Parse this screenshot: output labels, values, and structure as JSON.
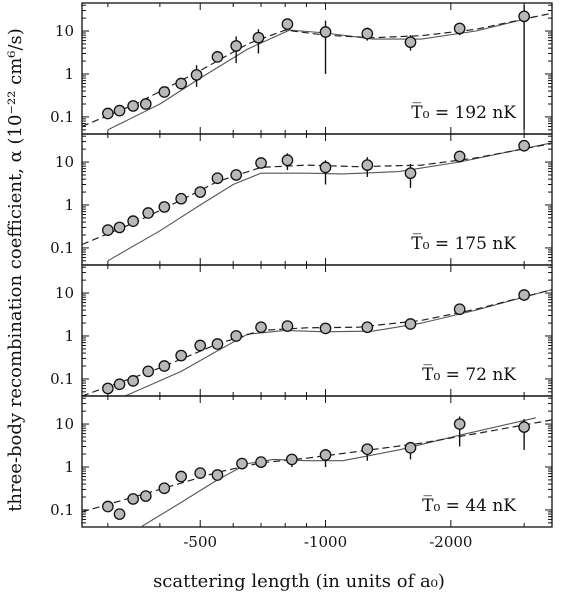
{
  "chart_data": {
    "type": "scatter",
    "ylabel": "three-body recombination coefficient, α (10⁻²² cm⁶/s)",
    "xlabel": "scattering length (in units of a₀)",
    "x_tick_labels": [
      "-500",
      "-1000",
      "-2000"
    ],
    "y_tick_labels": [
      "0.1",
      "1",
      "10"
    ],
    "x_scale": "log (|a|)",
    "y_scale": "log",
    "xlim": [
      -260,
      -3500
    ],
    "ylim": [
      0.04,
      45
    ],
    "panels": [
      {
        "label_prefix": "T̅₀ = ",
        "label_value": "192 nK",
        "points": [
          {
            "x": -300,
            "y": 0.12,
            "lo": 0.12,
            "hi": 0.12
          },
          {
            "x": -320,
            "y": 0.14,
            "lo": 0.14,
            "hi": 0.14
          },
          {
            "x": -345,
            "y": 0.18,
            "lo": 0.18,
            "hi": 0.18
          },
          {
            "x": -370,
            "y": 0.2,
            "lo": 0.2,
            "hi": 0.2
          },
          {
            "x": -410,
            "y": 0.38,
            "lo": 0.38,
            "hi": 0.38
          },
          {
            "x": -450,
            "y": 0.6,
            "lo": 0.6,
            "hi": 0.6
          },
          {
            "x": -490,
            "y": 0.95,
            "lo": 0.5,
            "hi": 1.6
          },
          {
            "x": -550,
            "y": 2.5,
            "lo": 2.5,
            "hi": 2.5
          },
          {
            "x": -610,
            "y": 4.5,
            "lo": 1.8,
            "hi": 7.5
          },
          {
            "x": -690,
            "y": 7.0,
            "lo": 3.0,
            "hi": 11.0
          },
          {
            "x": -810,
            "y": 14.5,
            "lo": 14.5,
            "hi": 14.5
          },
          {
            "x": -1000,
            "y": 9.5,
            "lo": 1.0,
            "hi": 17.5
          },
          {
            "x": -1260,
            "y": 8.7,
            "lo": 6.0,
            "hi": 12.0
          },
          {
            "x": -1600,
            "y": 5.5,
            "lo": 3.5,
            "hi": 8.0
          },
          {
            "x": -2100,
            "y": 11.5,
            "lo": 8.0,
            "hi": 15.0
          },
          {
            "x": -3000,
            "y": 22.0,
            "lo": 0.05,
            "hi": 40.0
          }
        ],
        "dashed_fit": [
          [
            -260,
            0.06
          ],
          [
            -350,
            0.2
          ],
          [
            -500,
            1.2
          ],
          [
            -650,
            5.0
          ],
          [
            -800,
            10.5
          ],
          [
            -1000,
            8.0
          ],
          [
            -1300,
            7.0
          ],
          [
            -1700,
            7.8
          ],
          [
            -2300,
            11.0
          ],
          [
            -3500,
            26.0
          ]
        ],
        "solid_fit": [
          [
            -300,
            0.05
          ],
          [
            -400,
            0.2
          ],
          [
            -500,
            0.8
          ],
          [
            -650,
            3.8
          ],
          [
            -820,
            10.5
          ],
          [
            -1000,
            9.0
          ],
          [
            -1300,
            6.5
          ],
          [
            -1700,
            6.5
          ],
          [
            -2300,
            10.0
          ],
          [
            -3200,
            22.0
          ]
        ]
      },
      {
        "label_prefix": "T̅₀ = ",
        "label_value": "175 nK",
        "points": [
          {
            "x": -300,
            "y": 0.26,
            "lo": 0.26,
            "hi": 0.26
          },
          {
            "x": -320,
            "y": 0.3,
            "lo": 0.3,
            "hi": 0.3
          },
          {
            "x": -345,
            "y": 0.42,
            "lo": 0.42,
            "hi": 0.42
          },
          {
            "x": -375,
            "y": 0.65,
            "lo": 0.65,
            "hi": 0.65
          },
          {
            "x": -410,
            "y": 0.9,
            "lo": 0.9,
            "hi": 0.9
          },
          {
            "x": -450,
            "y": 1.4,
            "lo": 1.4,
            "hi": 1.4
          },
          {
            "x": -500,
            "y": 2.0,
            "lo": 2.0,
            "hi": 2.0
          },
          {
            "x": -550,
            "y": 4.2,
            "lo": 4.2,
            "hi": 4.2
          },
          {
            "x": -610,
            "y": 5.0,
            "lo": 5.0,
            "hi": 5.0
          },
          {
            "x": -700,
            "y": 9.5,
            "lo": 9.5,
            "hi": 9.5
          },
          {
            "x": -810,
            "y": 11.0,
            "lo": 6.5,
            "hi": 16.0
          },
          {
            "x": -1000,
            "y": 7.5,
            "lo": 3.0,
            "hi": 11.0
          },
          {
            "x": -1260,
            "y": 8.5,
            "lo": 4.5,
            "hi": 13.0
          },
          {
            "x": -1600,
            "y": 5.5,
            "lo": 2.5,
            "hi": 9.0
          },
          {
            "x": -2100,
            "y": 13.5,
            "lo": 10.0,
            "hi": 17.0
          },
          {
            "x": -3000,
            "y": 24.0,
            "lo": 24.0,
            "hi": 24.0
          }
        ],
        "dashed_fit": [
          [
            -260,
            0.12
          ],
          [
            -350,
            0.4
          ],
          [
            -450,
            1.3
          ],
          [
            -550,
            3.5
          ],
          [
            -700,
            7.5
          ],
          [
            -900,
            8.5
          ],
          [
            -1200,
            7.8
          ],
          [
            -1700,
            8.5
          ],
          [
            -2300,
            12.5
          ],
          [
            -3500,
            27.0
          ]
        ],
        "solid_fit": [
          [
            -300,
            0.05
          ],
          [
            -400,
            0.25
          ],
          [
            -500,
            1.0
          ],
          [
            -600,
            3.0
          ],
          [
            -700,
            5.5
          ],
          [
            -900,
            5.5
          ],
          [
            -1100,
            5.3
          ],
          [
            -1500,
            6.0
          ],
          [
            -2100,
            10.0
          ],
          [
            -3500,
            28.0
          ]
        ]
      },
      {
        "label_prefix": "T̅₀ = ",
        "label_value": "72 nK",
        "points": [
          {
            "x": -300,
            "y": 0.06,
            "lo": 0.06,
            "hi": 0.06
          },
          {
            "x": -320,
            "y": 0.075,
            "lo": 0.075,
            "hi": 0.075
          },
          {
            "x": -345,
            "y": 0.09,
            "lo": 0.09,
            "hi": 0.09
          },
          {
            "x": -375,
            "y": 0.15,
            "lo": 0.15,
            "hi": 0.15
          },
          {
            "x": -410,
            "y": 0.2,
            "lo": 0.2,
            "hi": 0.2
          },
          {
            "x": -450,
            "y": 0.35,
            "lo": 0.35,
            "hi": 0.35
          },
          {
            "x": -500,
            "y": 0.6,
            "lo": 0.6,
            "hi": 0.6
          },
          {
            "x": -550,
            "y": 0.65,
            "lo": 0.65,
            "hi": 0.65
          },
          {
            "x": -610,
            "y": 1.0,
            "lo": 1.0,
            "hi": 1.0
          },
          {
            "x": -700,
            "y": 1.6,
            "lo": 1.6,
            "hi": 1.6
          },
          {
            "x": -810,
            "y": 1.7,
            "lo": 1.7,
            "hi": 1.7
          },
          {
            "x": -1000,
            "y": 1.5,
            "lo": 1.5,
            "hi": 1.5
          },
          {
            "x": -1260,
            "y": 1.6,
            "lo": 1.6,
            "hi": 1.6
          },
          {
            "x": -1600,
            "y": 1.9,
            "lo": 1.9,
            "hi": 1.9
          },
          {
            "x": -2100,
            "y": 4.2,
            "lo": 4.2,
            "hi": 4.2
          },
          {
            "x": -3000,
            "y": 9.0,
            "lo": 9.0,
            "hi": 9.0
          }
        ],
        "dashed_fit": [
          [
            -260,
            0.04
          ],
          [
            -400,
            0.18
          ],
          [
            -550,
            0.65
          ],
          [
            -700,
            1.35
          ],
          [
            -900,
            1.55
          ],
          [
            -1200,
            1.6
          ],
          [
            -1700,
            2.3
          ],
          [
            -2300,
            4.2
          ],
          [
            -3500,
            12.0
          ]
        ],
        "solid_fit": [
          [
            -330,
            0.04
          ],
          [
            -450,
            0.15
          ],
          [
            -550,
            0.45
          ],
          [
            -650,
            1.1
          ],
          [
            -800,
            1.35
          ],
          [
            -1000,
            1.25
          ],
          [
            -1300,
            1.3
          ],
          [
            -1700,
            2.0
          ],
          [
            -2300,
            4.0
          ],
          [
            -3500,
            12.0
          ]
        ]
      },
      {
        "label_prefix": "T̅₀ = ",
        "label_value": "44 nK",
        "points": [
          {
            "x": -300,
            "y": 0.12,
            "lo": 0.12,
            "hi": 0.12
          },
          {
            "x": -320,
            "y": 0.08,
            "lo": 0.08,
            "hi": 0.08
          },
          {
            "x": -345,
            "y": 0.18,
            "lo": 0.18,
            "hi": 0.18
          },
          {
            "x": -370,
            "y": 0.21,
            "lo": 0.21,
            "hi": 0.21
          },
          {
            "x": -410,
            "y": 0.32,
            "lo": 0.32,
            "hi": 0.32
          },
          {
            "x": -450,
            "y": 0.6,
            "lo": 0.6,
            "hi": 0.6
          },
          {
            "x": -500,
            "y": 0.72,
            "lo": 0.72,
            "hi": 0.72
          },
          {
            "x": -550,
            "y": 0.65,
            "lo": 0.65,
            "hi": 0.65
          },
          {
            "x": -630,
            "y": 1.2,
            "lo": 1.2,
            "hi": 1.2
          },
          {
            "x": -700,
            "y": 1.3,
            "lo": 1.3,
            "hi": 1.3
          },
          {
            "x": -830,
            "y": 1.5,
            "lo": 1.0,
            "hi": 2.0
          },
          {
            "x": -1000,
            "y": 1.9,
            "lo": 1.0,
            "hi": 2.6
          },
          {
            "x": -1260,
            "y": 2.6,
            "lo": 1.4,
            "hi": 3.5
          },
          {
            "x": -1600,
            "y": 2.8,
            "lo": 1.5,
            "hi": 3.8
          },
          {
            "x": -2100,
            "y": 10.0,
            "lo": 3.0,
            "hi": 15.0
          },
          {
            "x": -3000,
            "y": 8.5,
            "lo": 2.5,
            "hi": 13.0
          }
        ],
        "dashed_fit": [
          [
            -260,
            0.09
          ],
          [
            -400,
            0.3
          ],
          [
            -550,
            0.75
          ],
          [
            -700,
            1.25
          ],
          [
            -900,
            1.6
          ],
          [
            -1200,
            2.3
          ],
          [
            -1700,
            3.6
          ],
          [
            -2300,
            6.0
          ],
          [
            -3500,
            12.5
          ]
        ],
        "solid_fit": [
          [
            -360,
            0.04
          ],
          [
            -450,
            0.15
          ],
          [
            -550,
            0.5
          ],
          [
            -650,
            1.2
          ],
          [
            -750,
            1.5
          ],
          [
            -900,
            1.4
          ],
          [
            -1100,
            1.4
          ],
          [
            -1500,
            2.5
          ],
          [
            -2100,
            5.5
          ],
          [
            -3200,
            14.0
          ]
        ]
      }
    ]
  }
}
